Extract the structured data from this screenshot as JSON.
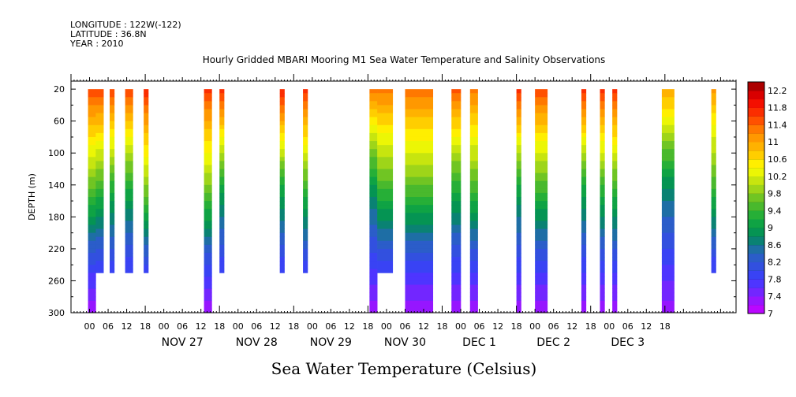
{
  "header": {
    "longitude": "LONGITUDE : 122W(-122)",
    "latitude": "LATITUDE : 36.8N",
    "year": "YEAR : 2010"
  },
  "chart_data": {
    "type": "heatmap",
    "title": "Hourly Gridded MBARI Mooring M1 Sea Water Temperature and Salinity Observations",
    "xlabel": "Sea Water Temperature (Celsius)",
    "ylabel": "DEPTH (m)",
    "x_unit": "hours since Nov 26 2010 00:00",
    "xlim": [
      0,
      215
    ],
    "ylim": [
      300,
      10
    ],
    "y_ticks": [
      20,
      60,
      100,
      140,
      180,
      220,
      260,
      300
    ],
    "x_tick_labels": [
      "00",
      "06",
      "12",
      "18",
      "00",
      "06",
      "12",
      "18",
      "00",
      "06",
      "12",
      "18",
      "00",
      "06",
      "12",
      "18",
      "00",
      "06",
      "12",
      "18",
      "00",
      "06",
      "12",
      "18",
      "00",
      "06",
      "12",
      "18",
      "00",
      "06",
      "12",
      "18"
    ],
    "day_labels": [
      "NOV 27",
      "NOV 28",
      "NOV 29",
      "NOV 30",
      "DEC  1",
      "DEC  2",
      "DEC  3"
    ],
    "colorbar": {
      "min": 7,
      "max": 12.4,
      "step": 0.2,
      "labels": [
        "7",
        "7.4",
        "7.8",
        "8.2",
        "8.6",
        "9",
        "9.4",
        "9.8",
        "10.2",
        "10.6",
        "11",
        "11.4",
        "11.8",
        "12.2"
      ]
    },
    "data_segments": [
      {
        "start": 5.5,
        "end": 8,
        "bottom": 300,
        "surface_temp": 11.6
      },
      {
        "start": 8,
        "end": 10.5,
        "bottom": 250,
        "surface_temp": 11.6
      },
      {
        "start": 12.5,
        "end": 14,
        "bottom": 250,
        "surface_temp": 11.6
      },
      {
        "start": 17.5,
        "end": 20,
        "bottom": 250,
        "surface_temp": 11.6
      },
      {
        "start": 23.5,
        "end": 25,
        "bottom": 250,
        "surface_temp": 11.8
      },
      {
        "start": 43,
        "end": 45.5,
        "bottom": 300,
        "surface_temp": 11.7
      },
      {
        "start": 48,
        "end": 49.5,
        "bottom": 250,
        "surface_temp": 11.7
      },
      {
        "start": 67.5,
        "end": 69,
        "bottom": 250,
        "surface_temp": 11.8
      },
      {
        "start": 75,
        "end": 76.5,
        "bottom": 250,
        "surface_temp": 11.7
      },
      {
        "start": 96.5,
        "end": 99,
        "bottom": 300,
        "surface_temp": 11.3
      },
      {
        "start": 99,
        "end": 104,
        "bottom": 250,
        "surface_temp": 11.3
      },
      {
        "start": 108,
        "end": 117,
        "bottom": 300,
        "surface_temp": 11.4
      },
      {
        "start": 123,
        "end": 126,
        "bottom": 300,
        "surface_temp": 11.5
      },
      {
        "start": 129,
        "end": 131.5,
        "bottom": 300,
        "surface_temp": 11.3
      },
      {
        "start": 144,
        "end": 145.5,
        "bottom": 300,
        "surface_temp": 11.7
      },
      {
        "start": 150,
        "end": 154,
        "bottom": 300,
        "surface_temp": 11.6
      },
      {
        "start": 165,
        "end": 166.5,
        "bottom": 300,
        "surface_temp": 11.7
      },
      {
        "start": 171,
        "end": 172.5,
        "bottom": 300,
        "surface_temp": 11.7
      },
      {
        "start": 175,
        "end": 176.5,
        "bottom": 300,
        "surface_temp": 11.7
      },
      {
        "start": 191,
        "end": 195,
        "bottom": 300,
        "surface_temp": 11.0
      },
      {
        "start": 207,
        "end": 208.5,
        "bottom": 250,
        "surface_temp": 11.1
      }
    ],
    "deep_temp": 7.3,
    "thermocline_depth": 60
  }
}
